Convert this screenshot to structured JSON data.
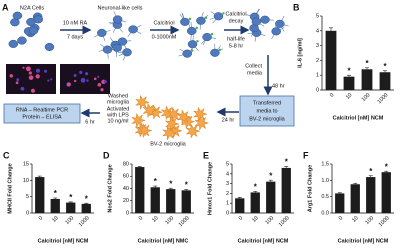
{
  "panel_a": {
    "label": "A",
    "n2a": "N2A Cells",
    "step1": [
      "10 nM RA",
      "7 days"
    ],
    "neuronal": "Neuronal-like cells",
    "step2": [
      "Calcitriol",
      "0-1000nM"
    ],
    "step3": [
      "Calcitriol",
      "decay"
    ],
    "step3b": [
      "half-life",
      "5-8 hr"
    ],
    "collect": [
      "Collect",
      "media"
    ],
    "collect_time": "48 hr",
    "transfer": [
      "Transferred",
      "media to",
      "BV-2 microglia"
    ],
    "transfer_time": "24 hr",
    "bv2": "BV-2 microglia",
    "treat": [
      "Washed",
      "microglia",
      "Activated",
      "with LPS",
      "10 ng/ml"
    ],
    "readout": [
      "RNA – Realtime PCR",
      "Protein – ELISA"
    ],
    "readout_time": "6 hr"
  },
  "chart_data": [
    {
      "type": "bar",
      "panel": "B",
      "y_label": "IL-6 [ng/ml]",
      "x_label": "Calcitriol [nM] NCM",
      "categories": [
        "0",
        "10",
        "100",
        "1000"
      ],
      "values": [
        4.0,
        0.9,
        1.4,
        1.2
      ],
      "errors": [
        0.2,
        0.1,
        0.1,
        0.1
      ],
      "significant": [
        false,
        true,
        true,
        true
      ],
      "significance_label": "*",
      "color": "#1c1c1c",
      "ylim": [
        0,
        5
      ],
      "yticks": [
        0,
        1,
        2,
        3,
        4,
        5
      ]
    },
    {
      "type": "bar",
      "panel": "C",
      "y_label": "MHCII Fold Change",
      "x_label": "Calcitriol [nM] NCM",
      "categories": [
        "0",
        "10",
        "100",
        "1000"
      ],
      "values": [
        11,
        4.3,
        3.2,
        2.8
      ],
      "errors": [
        0.3,
        0.3,
        0.2,
        0.2
      ],
      "significant": [
        false,
        true,
        true,
        true
      ],
      "significance_label": "*",
      "color": "#1c1c1c",
      "ylim": [
        0,
        15
      ],
      "yticks": [
        0,
        5,
        10,
        15
      ]
    },
    {
      "type": "bar",
      "panel": "D",
      "y_label": "Nos2 Fold Change",
      "x_label": "Calcitriol [nM] NMC",
      "categories": [
        "0",
        "10",
        "100",
        "1000"
      ],
      "values": [
        75,
        42,
        39,
        37
      ],
      "errors": [
        1,
        2,
        1.5,
        1.5
      ],
      "significant": [
        false,
        true,
        true,
        true
      ],
      "significance_label": "*",
      "color": "#1c1c1c",
      "ylim": [
        0,
        80
      ],
      "yticks": [
        0,
        20,
        40,
        60,
        80
      ]
    },
    {
      "type": "bar",
      "panel": "E",
      "y_label": "Hmox1 Fold Change",
      "x_label": "Calcitriol [nM] NCM",
      "categories": [
        "0",
        "10",
        "100",
        "1000"
      ],
      "values": [
        1.5,
        2.1,
        3.2,
        4.6
      ],
      "errors": [
        0.1,
        0.1,
        0.15,
        0.15
      ],
      "significant": [
        false,
        true,
        true,
        true
      ],
      "significance_label": "*",
      "color": "#1c1c1c",
      "ylim": [
        0,
        5
      ],
      "yticks": [
        0,
        1,
        2,
        3,
        4,
        5
      ]
    },
    {
      "type": "bar",
      "panel": "F",
      "y_label": "Arg1 Fold Change",
      "x_label": "Calcitriol [nM] NCM",
      "categories": [
        "0",
        "10",
        "100",
        "1000"
      ],
      "values": [
        0.6,
        0.88,
        1.1,
        1.25
      ],
      "errors": [
        0.02,
        0.03,
        0.04,
        0.03
      ],
      "significant": [
        false,
        false,
        true,
        true
      ],
      "significance_label": "*",
      "color": "#1c1c1c",
      "ylim": [
        0,
        1.5
      ],
      "yticks": [
        {
          "value": 0,
          "label": "0.0"
        },
        {
          "value": 0.5,
          "label": "0.5"
        },
        {
          "value": 1,
          "label": "1.0"
        },
        {
          "value": 1.5,
          "label": "1.5"
        }
      ]
    }
  ]
}
